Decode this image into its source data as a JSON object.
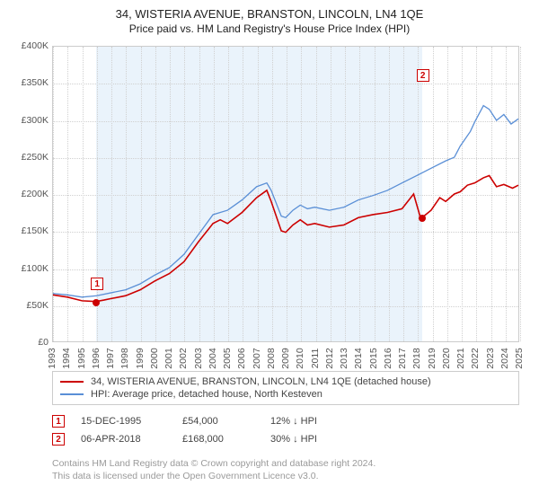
{
  "title": "34, WISTERIA AVENUE, BRANSTON, LINCOLN, LN4 1QE",
  "subtitle": "Price paid vs. HM Land Registry's House Price Index (HPI)",
  "chart": {
    "type": "line",
    "background_color": "#ffffff",
    "shaded_band_color": "#eaf3fb",
    "grid_color": "#d0d0d0",
    "axis_color": "#cccccc",
    "x": {
      "min": 1993,
      "max": 2025,
      "ticks": [
        1993,
        1994,
        1995,
        1996,
        1997,
        1998,
        1999,
        2000,
        2001,
        2002,
        2003,
        2004,
        2005,
        2006,
        2007,
        2008,
        2009,
        2010,
        2011,
        2012,
        2013,
        2014,
        2015,
        2016,
        2017,
        2018,
        2019,
        2020,
        2021,
        2022,
        2023,
        2024,
        2025
      ]
    },
    "y": {
      "min": 0,
      "max": 400000,
      "ticks": [
        0,
        50000,
        100000,
        150000,
        200000,
        250000,
        300000,
        350000,
        400000
      ],
      "tick_labels": [
        "£0",
        "£50K",
        "£100K",
        "£150K",
        "£200K",
        "£250K",
        "£300K",
        "£350K",
        "£400K"
      ]
    },
    "shaded_ranges": [
      [
        1995.96,
        2018.27
      ]
    ],
    "series": [
      {
        "id": "property",
        "label": "34, WISTERIA AVENUE, BRANSTON, LINCOLN, LN4 1QE (detached house)",
        "color": "#cc0000",
        "width": 1.6,
        "points": [
          [
            1993,
            63000
          ],
          [
            1994,
            60000
          ],
          [
            1995,
            55000
          ],
          [
            1995.96,
            54000
          ],
          [
            1996.5,
            56000
          ],
          [
            1997,
            58000
          ],
          [
            1998,
            62000
          ],
          [
            1999,
            70000
          ],
          [
            2000,
            82000
          ],
          [
            2001,
            92000
          ],
          [
            2002,
            108000
          ],
          [
            2003,
            135000
          ],
          [
            2004,
            160000
          ],
          [
            2004.5,
            165000
          ],
          [
            2005,
            160000
          ],
          [
            2006,
            175000
          ],
          [
            2007,
            195000
          ],
          [
            2007.7,
            205000
          ],
          [
            2008,
            190000
          ],
          [
            2008.7,
            150000
          ],
          [
            2009,
            148000
          ],
          [
            2009.5,
            158000
          ],
          [
            2010,
            165000
          ],
          [
            2010.5,
            158000
          ],
          [
            2011,
            160000
          ],
          [
            2012,
            155000
          ],
          [
            2013,
            158000
          ],
          [
            2014,
            168000
          ],
          [
            2015,
            172000
          ],
          [
            2016,
            175000
          ],
          [
            2017,
            180000
          ],
          [
            2017.8,
            200000
          ],
          [
            2018.27,
            168000
          ],
          [
            2018.5,
            170000
          ],
          [
            2019,
            178000
          ],
          [
            2019.6,
            195000
          ],
          [
            2020,
            190000
          ],
          [
            2020.6,
            200000
          ],
          [
            2021,
            203000
          ],
          [
            2021.5,
            212000
          ],
          [
            2022,
            215000
          ],
          [
            2022.6,
            222000
          ],
          [
            2023,
            225000
          ],
          [
            2023.5,
            210000
          ],
          [
            2024,
            213000
          ],
          [
            2024.6,
            208000
          ],
          [
            2025,
            212000
          ]
        ]
      },
      {
        "id": "hpi",
        "label": "HPI: Average price, detached house, North Kesteven",
        "color": "#5a8fd6",
        "width": 1.3,
        "points": [
          [
            1993,
            65000
          ],
          [
            1994,
            63000
          ],
          [
            1995,
            60000
          ],
          [
            1996,
            62000
          ],
          [
            1997,
            66000
          ],
          [
            1998,
            70000
          ],
          [
            1999,
            78000
          ],
          [
            2000,
            90000
          ],
          [
            2001,
            100000
          ],
          [
            2002,
            118000
          ],
          [
            2003,
            145000
          ],
          [
            2004,
            172000
          ],
          [
            2005,
            178000
          ],
          [
            2006,
            192000
          ],
          [
            2007,
            210000
          ],
          [
            2007.7,
            215000
          ],
          [
            2008,
            205000
          ],
          [
            2008.7,
            170000
          ],
          [
            2009,
            168000
          ],
          [
            2009.5,
            178000
          ],
          [
            2010,
            185000
          ],
          [
            2010.5,
            180000
          ],
          [
            2011,
            182000
          ],
          [
            2012,
            178000
          ],
          [
            2013,
            182000
          ],
          [
            2014,
            192000
          ],
          [
            2015,
            198000
          ],
          [
            2016,
            205000
          ],
          [
            2017,
            215000
          ],
          [
            2018,
            225000
          ],
          [
            2019,
            235000
          ],
          [
            2020,
            245000
          ],
          [
            2020.6,
            250000
          ],
          [
            2021,
            265000
          ],
          [
            2021.7,
            285000
          ],
          [
            2022,
            298000
          ],
          [
            2022.6,
            320000
          ],
          [
            2023,
            315000
          ],
          [
            2023.5,
            300000
          ],
          [
            2024,
            308000
          ],
          [
            2024.5,
            295000
          ],
          [
            2025,
            302000
          ]
        ]
      }
    ],
    "markers": [
      {
        "n": "1",
        "x": 1995.96,
        "y": 54000,
        "box_offset_x": -6,
        "box_offset_y": -28
      },
      {
        "n": "2",
        "x": 2018.27,
        "y": 168000,
        "box_offset_x": -6,
        "box_offset_y": -166
      }
    ]
  },
  "legend": {
    "items": [
      {
        "series": "property"
      },
      {
        "series": "hpi"
      }
    ]
  },
  "events": [
    {
      "n": "1",
      "date": "15-DEC-1995",
      "price": "£54,000",
      "hpi": "12% ↓ HPI"
    },
    {
      "n": "2",
      "date": "06-APR-2018",
      "price": "£168,000",
      "hpi": "30% ↓ HPI"
    }
  ],
  "footer_lines": [
    "Contains HM Land Registry data © Crown copyright and database right 2024.",
    "This data is licensed under the Open Government Licence v3.0."
  ],
  "colors": {
    "text": "#222222",
    "muted": "#9a9a9a",
    "marker_border": "#cc0000"
  }
}
